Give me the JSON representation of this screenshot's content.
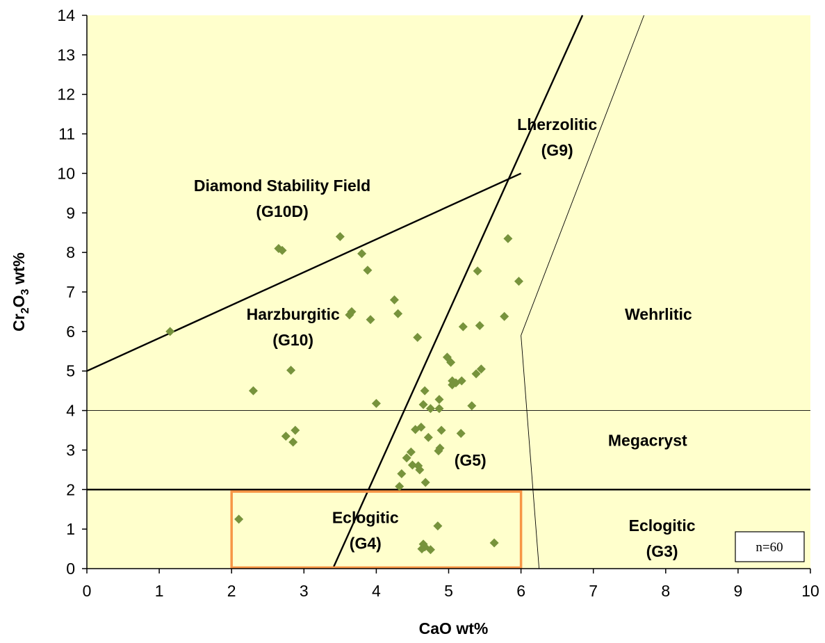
{
  "chart_data": {
    "type": "scatter",
    "xlabel": "CaO wt%",
    "ylabel_main": "Cr",
    "ylabel_sub1": "2",
    "ylabel_mid": "O",
    "ylabel_sub2": "3",
    "ylabel_end": " wt%",
    "xlim": [
      0,
      10
    ],
    "ylim": [
      0,
      14
    ],
    "x_ticks": [
      "0",
      "1",
      "2",
      "3",
      "4",
      "5",
      "6",
      "7",
      "8",
      "9",
      "10"
    ],
    "y_ticks": [
      "0",
      "1",
      "2",
      "3",
      "4",
      "5",
      "6",
      "7",
      "8",
      "9",
      "10",
      "11",
      "12",
      "13",
      "14"
    ],
    "grid": false,
    "colors": {
      "plot_background": "#FFFFCC",
      "marker": "#77933C",
      "eclogitic_box": "#F79646",
      "boundary": "#000000"
    },
    "sample_count_label": "n=60",
    "region_labels": [
      {
        "id": "diamond",
        "lines": [
          "Diamond Stability Field",
          "(G10D)"
        ],
        "x": 2.7,
        "y": 9.55
      },
      {
        "id": "harzburgitic",
        "lines": [
          "Harzburgitic",
          "(G10)"
        ],
        "x": 2.85,
        "y": 6.3
      },
      {
        "id": "lherzolitic",
        "lines": [
          "Lherzolitic",
          "(G9)"
        ],
        "x": 6.5,
        "y": 11.1
      },
      {
        "id": "wehrlitic",
        "lines": [
          "Wehrlitic"
        ],
        "x": 7.9,
        "y": 6.3
      },
      {
        "id": "megacryst",
        "lines": [
          "Megacryst"
        ],
        "x": 7.75,
        "y": 3.1
      },
      {
        "id": "g5",
        "lines": [
          "(G5)"
        ],
        "x": 5.3,
        "y": 2.6
      },
      {
        "id": "eclogitic-g4",
        "lines": [
          "Eclogitic",
          "(G4)"
        ],
        "x": 3.85,
        "y": 1.15
      },
      {
        "id": "eclogitic-g3",
        "lines": [
          "Eclogitic",
          "(G3)"
        ],
        "x": 7.95,
        "y": 0.95
      }
    ],
    "boundary_lines": [
      {
        "name": "diamond-boundary",
        "x": [
          0,
          6
        ],
        "y": [
          5,
          10
        ],
        "weight": "thick"
      },
      {
        "name": "g9-g10-boundary",
        "x": [
          3.4,
          6.85
        ],
        "y": [
          0,
          14
        ],
        "weight": "thick"
      },
      {
        "name": "cr2o3-2-boundary",
        "x": [
          0,
          10
        ],
        "y": [
          2,
          2
        ],
        "weight": "thick"
      },
      {
        "name": "cr2o3-4-boundary",
        "x": [
          0,
          10
        ],
        "y": [
          4,
          4
        ],
        "weight": "thin"
      },
      {
        "name": "wehrlitic-boundary-upper",
        "x": [
          6.0,
          7.7
        ],
        "y": [
          5.9,
          14
        ],
        "weight": "thin"
      },
      {
        "name": "wehrlitic-boundary-lower",
        "x": [
          6.0,
          6.25
        ],
        "y": [
          5.9,
          0
        ],
        "weight": "thin"
      }
    ],
    "eclogitic_box": {
      "x": [
        2,
        6
      ],
      "y": [
        0,
        1.95
      ]
    },
    "series": [
      {
        "marker": "diamond",
        "x": [
          1.15,
          2.65,
          3.5,
          3.8,
          3.88,
          5.82,
          5.97,
          5.4,
          2.3,
          2.82,
          2.75,
          2.88,
          2.85,
          3.63,
          3.66,
          3.92,
          4.25,
          4.3,
          4.57,
          4.0,
          5.2,
          5.43,
          5.77,
          4.98,
          5.03,
          5.05,
          5.05,
          5.45,
          5.38,
          5.18,
          4.67,
          4.65,
          4.87,
          4.75,
          4.87,
          5.32,
          4.62,
          4.54,
          4.72,
          4.9,
          4.88,
          4.86,
          5.17,
          4.48,
          4.42,
          4.58,
          4.5,
          4.6,
          4.35,
          4.68,
          4.32,
          2.1,
          4.85,
          4.65,
          4.67,
          4.63,
          4.75,
          5.63,
          2.7,
          5.1
        ],
        "y": [
          6.0,
          8.1,
          8.4,
          7.97,
          7.55,
          8.35,
          7.27,
          7.53,
          4.5,
          5.02,
          3.35,
          3.5,
          3.2,
          6.42,
          6.5,
          6.3,
          6.8,
          6.45,
          5.85,
          4.18,
          6.12,
          6.15,
          6.38,
          5.35,
          5.22,
          4.75,
          4.65,
          5.05,
          4.93,
          4.75,
          4.5,
          4.15,
          4.28,
          4.05,
          4.05,
          4.12,
          3.58,
          3.52,
          3.32,
          3.5,
          3.05,
          2.98,
          3.42,
          2.95,
          2.8,
          2.6,
          2.62,
          2.5,
          2.4,
          2.18,
          2.08,
          1.25,
          1.08,
          0.62,
          0.55,
          0.5,
          0.48,
          0.65,
          8.05,
          4.7
        ]
      }
    ]
  }
}
